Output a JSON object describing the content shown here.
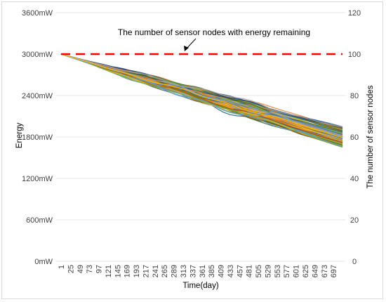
{
  "chart_data": {
    "type": "line",
    "title": "",
    "annotation": "The number of sensor nodes with energy remaining",
    "xlabel": "Time(day)",
    "ylabel_left": "Energy",
    "ylabel_right": "The number of sensor nodes",
    "x_ticks": [
      "1",
      "25",
      "49",
      "73",
      "97",
      "121",
      "145",
      "169",
      "193",
      "217",
      "241",
      "265",
      "289",
      "313",
      "337",
      "361",
      "385",
      "409",
      "433",
      "457",
      "481",
      "505",
      "529",
      "553",
      "577",
      "601",
      "625",
      "649",
      "673",
      "697"
    ],
    "x_range": [
      1,
      720
    ],
    "y_left": {
      "ticks": [
        "0mW",
        "600mW",
        "1200mW",
        "1800mW",
        "2400mW",
        "3000mW",
        "3600mW"
      ],
      "values": [
        0,
        600,
        1200,
        1800,
        2400,
        3000,
        3600
      ],
      "range": [
        0,
        3600
      ],
      "unit": "mW"
    },
    "y_right": {
      "ticks": [
        "0",
        "20",
        "40",
        "60",
        "80",
        "100",
        "120"
      ],
      "values": [
        0,
        20,
        40,
        60,
        80,
        100,
        120
      ],
      "range": [
        0,
        120
      ]
    },
    "grid": "horizontal",
    "node_count_series": {
      "style": "dashed",
      "color": "#ff0000",
      "x": [
        1,
        720
      ],
      "y": [
        100,
        100
      ]
    },
    "energy_series": {
      "count": 100,
      "start_x": 1,
      "end_x": 720,
      "start_y": 3000,
      "end_y_range": [
        1650,
        1950
      ],
      "colors": [
        "#4472c4",
        "#ed7d31",
        "#a5a5a5",
        "#ffc000",
        "#5b9bd5",
        "#70ad47",
        "#264478",
        "#9e480e",
        "#636363",
        "#997300",
        "#255e91",
        "#43682b"
      ]
    }
  }
}
